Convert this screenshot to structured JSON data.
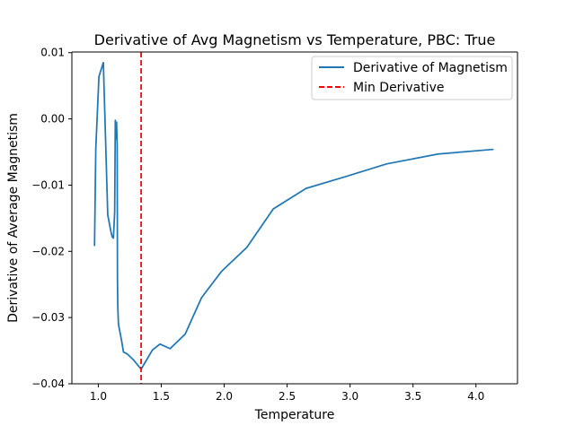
{
  "chart_data": {
    "type": "line",
    "title": "Derivative of Avg Magnetism vs Temperature, PBC: True",
    "xlabel": "Temperature",
    "ylabel": "Derivative of Average Magnetism",
    "xlim": [
      0.79,
      4.33
    ],
    "ylim": [
      -0.04,
      0.0101
    ],
    "x_ticks": [
      1.0,
      1.5,
      2.0,
      2.5,
      3.0,
      3.5,
      4.0
    ],
    "x_tick_labels": [
      "1.0",
      "1.5",
      "2.0",
      "2.5",
      "3.0",
      "3.5",
      "4.0"
    ],
    "y_ticks": [
      -0.04,
      -0.03,
      -0.02,
      -0.01,
      0.0,
      0.01
    ],
    "y_tick_labels": [
      "−0.04",
      "−0.03",
      "−0.02",
      "−0.01",
      "0.00",
      "0.01"
    ],
    "grid": false,
    "legend_position": "upper-right",
    "series": [
      {
        "name": "Derivative of Magnetism",
        "color": "#1f77b4",
        "style": "solid",
        "x": [
          0.97,
          0.98,
          1.005,
          1.04,
          1.075,
          1.1,
          1.11,
          1.12,
          1.13,
          1.135,
          1.14,
          1.145,
          1.15,
          1.152,
          1.155,
          1.16,
          1.17,
          1.185,
          1.2,
          1.23,
          1.28,
          1.34,
          1.43,
          1.49,
          1.57,
          1.69,
          1.82,
          1.98,
          2.18,
          2.39,
          2.65,
          2.95,
          3.29,
          3.7,
          4.14
        ],
        "y": [
          -0.0192,
          -0.0045,
          0.0064,
          0.0085,
          -0.0145,
          -0.017,
          -0.0178,
          -0.018,
          -0.014,
          -0.0002,
          -0.003,
          -0.0005,
          -0.004,
          -0.024,
          -0.0285,
          -0.031,
          -0.032,
          -0.0335,
          -0.0352,
          -0.0355,
          -0.0364,
          -0.0378,
          -0.0349,
          -0.034,
          -0.0347,
          -0.0325,
          -0.027,
          -0.023,
          -0.0194,
          -0.0136,
          -0.0105,
          -0.0088,
          -0.0068,
          -0.0053,
          -0.0046
        ]
      },
      {
        "name": "Min Derivative",
        "color": "#ff0000",
        "style": "dashed",
        "vline_x": 1.34
      }
    ]
  }
}
